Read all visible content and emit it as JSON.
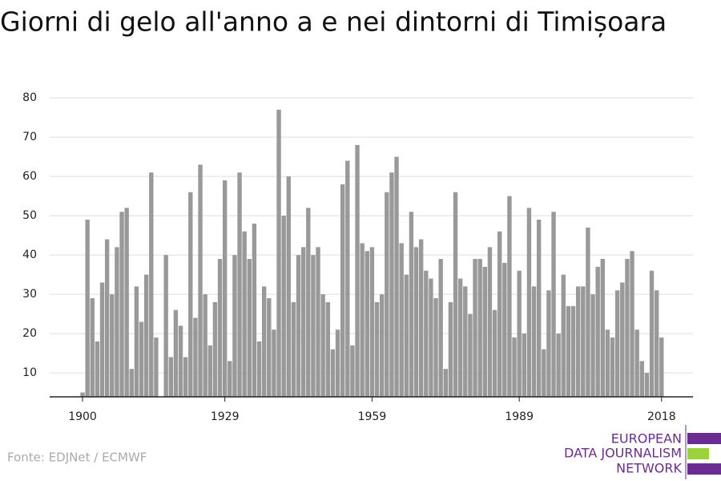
{
  "chart_data": {
    "type": "bar",
    "title": "Giorni di gelo all'anno a e nei dintorni di Timișoara",
    "source": "Fonte: EDJNet / ECMWF",
    "logo": [
      "EUROPEAN",
      "DATA JOURNALISM",
      "NETWORK"
    ],
    "color": "#999999",
    "x": [
      1900,
      1901,
      1902,
      1903,
      1904,
      1905,
      1906,
      1907,
      1908,
      1909,
      1910,
      1911,
      1912,
      1913,
      1914,
      1915,
      1916,
      1917,
      1918,
      1919,
      1920,
      1921,
      1922,
      1923,
      1924,
      1925,
      1926,
      1927,
      1928,
      1929,
      1930,
      1931,
      1932,
      1933,
      1934,
      1935,
      1936,
      1937,
      1938,
      1939,
      1940,
      1941,
      1942,
      1943,
      1944,
      1945,
      1946,
      1947,
      1948,
      1949,
      1950,
      1951,
      1952,
      1953,
      1954,
      1955,
      1956,
      1957,
      1958,
      1959,
      1960,
      1961,
      1962,
      1963,
      1964,
      1965,
      1966,
      1967,
      1968,
      1969,
      1970,
      1971,
      1972,
      1973,
      1974,
      1975,
      1976,
      1977,
      1978,
      1979,
      1980,
      1981,
      1982,
      1983,
      1984,
      1985,
      1986,
      1987,
      1988,
      1989,
      1990,
      1991,
      1992,
      1993,
      1994,
      1995,
      1996,
      1997,
      1998,
      1999,
      2000,
      2001,
      2002,
      2003,
      2004,
      2005,
      2006,
      2007,
      2008,
      2009,
      2010,
      2011,
      2012,
      2013,
      2014,
      2015,
      2016,
      2017,
      2018
    ],
    "values": [
      5,
      49,
      29,
      18,
      33,
      44,
      30,
      42,
      51,
      52,
      11,
      32,
      23,
      35,
      61,
      19,
      4,
      40,
      14,
      26,
      22,
      14,
      56,
      24,
      63,
      30,
      17,
      28,
      39,
      59,
      13,
      40,
      61,
      46,
      39,
      48,
      18,
      32,
      29,
      21,
      77,
      50,
      60,
      28,
      40,
      42,
      52,
      40,
      42,
      30,
      28,
      16,
      21,
      58,
      64,
      17,
      68,
      43,
      41,
      42,
      28,
      30,
      56,
      61,
      65,
      43,
      35,
      51,
      42,
      44,
      36,
      34,
      29,
      39,
      11,
      28,
      56,
      34,
      32,
      25,
      39,
      39,
      37,
      42,
      26,
      46,
      38,
      55,
      19,
      36,
      20,
      52,
      32,
      49,
      16,
      31,
      51,
      20,
      35,
      27,
      27,
      32,
      32,
      47,
      30,
      37,
      39,
      21,
      19,
      31,
      33,
      39,
      41,
      21,
      13,
      10,
      36,
      31,
      19
    ],
    "xlim": [
      1893.3,
      2024.4
    ],
    "xticks": [
      1900,
      1929,
      1959,
      1989,
      2018
    ],
    "ylim": [
      3.9,
      82
    ],
    "yticks": [
      10,
      20,
      30,
      40,
      50,
      60,
      70,
      80
    ],
    "grid": true
  }
}
